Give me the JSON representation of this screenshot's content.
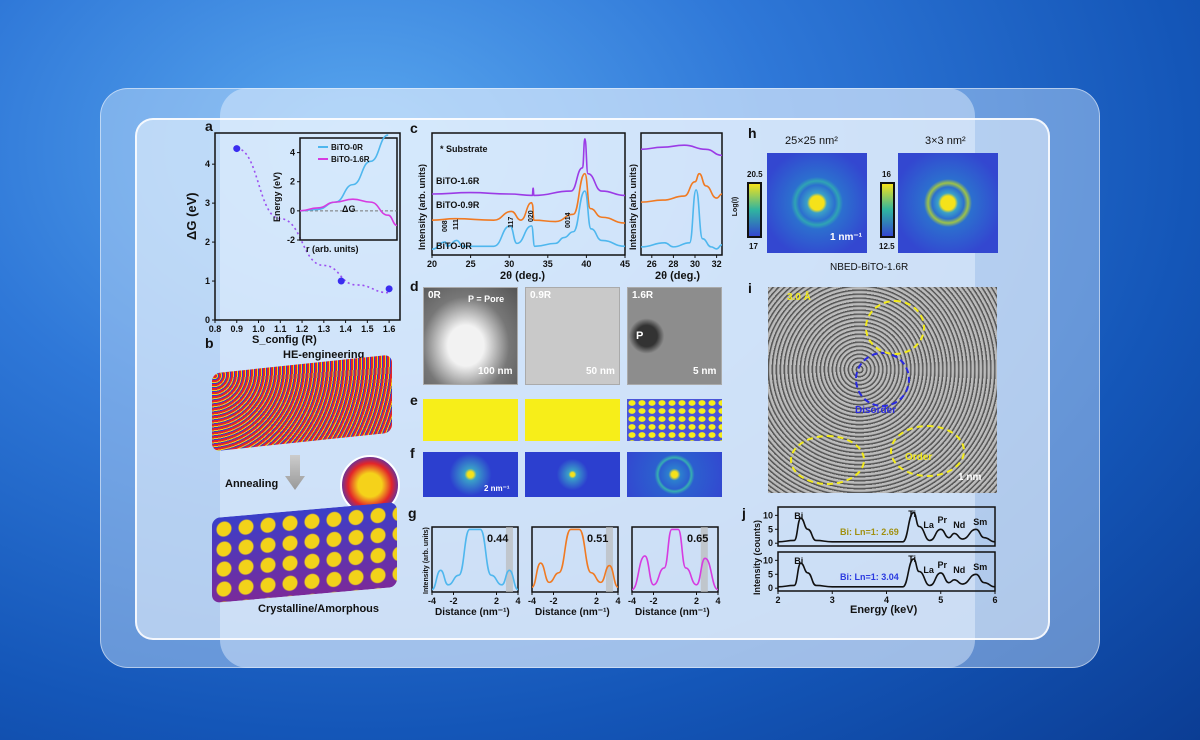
{
  "panels": {
    "a": "a",
    "b": "b",
    "c": "c",
    "d": "d",
    "e": "e",
    "f": "f",
    "g": "g",
    "h": "h",
    "i": "i",
    "j": "j"
  },
  "colors": {
    "blue_series": "#4fb7ee",
    "orange_series": "#f07a22",
    "magenta_series": "#d63be0",
    "purple_series": "#9b3be6",
    "points": "#3a2df0"
  },
  "b": {
    "top_label": "HE-engineering",
    "arrow_label": "Annealing",
    "bottom_label": "Crystalline/Amorphous"
  },
  "d": {
    "labels": [
      "0R",
      "0.9R",
      "1.6R"
    ],
    "pore_label": "P = Pore",
    "p_label": "P",
    "scalebars": [
      "100 nm",
      "50 nm",
      "5 nm"
    ]
  },
  "f": {
    "scalebar": "2 nm⁻¹"
  },
  "h": {
    "titles": [
      "25×25 nm²",
      "3×3 nm²"
    ],
    "colorbar_label": "Log(I)",
    "cbar1": [
      "20.5",
      "17"
    ],
    "cbar2": [
      "16",
      "12.5"
    ],
    "scalebar": "1 nm⁻¹",
    "caption": "NBED-BiTO-1.6R"
  },
  "i": {
    "spacing": "3.0 Å",
    "disorder": "Disorder",
    "order": "Order",
    "scalebar": "1 nm"
  },
  "chart_data": [
    {
      "panel": "a",
      "type": "scatter",
      "xlabel": "S_config (R)",
      "ylabel": "ΔG (eV)",
      "xlim": [
        0.8,
        1.65
      ],
      "ylim": [
        0,
        4.8
      ],
      "xticks": [
        "0.8",
        "0.9",
        "1.0",
        "1.1",
        "1.2",
        "1.3",
        "1.4",
        "1.5",
        "1.6"
      ],
      "yticks": [
        "0",
        "1",
        "2",
        "3",
        "4"
      ],
      "x": [
        0.9,
        1.38,
        1.6
      ],
      "y": [
        4.4,
        1.0,
        0.8
      ],
      "inset": {
        "type": "line",
        "xlabel": "r (arb. units)",
        "ylabel": "Energy (eV)",
        "yticks": [
          "-2",
          "0",
          "2",
          "4"
        ],
        "ylim": [
          -2,
          5
        ],
        "annotation": "ΔG",
        "series": [
          {
            "name": "BiTO-0R",
            "x": [
              0,
              0.2,
              0.4,
              0.6,
              0.8,
              1.0
            ],
            "y": [
              0,
              0.1,
              0.6,
              1.8,
              3.4,
              5.2
            ]
          },
          {
            "name": "BiTO-1.6R",
            "x": [
              0,
              0.2,
              0.4,
              0.6,
              0.8,
              1.0,
              1.1
            ],
            "y": [
              0,
              0.2,
              0.6,
              0.8,
              0.6,
              -0.3,
              -1.0
            ]
          }
        ]
      }
    },
    {
      "panel": "c",
      "type": "line",
      "xlabel": "2θ (deg.)",
      "ylabel": "Intensity (arb. units)",
      "xlim": [
        20,
        45
      ],
      "xticks": [
        "20",
        "25",
        "30",
        "35",
        "40",
        "45"
      ],
      "legend_note": "* Substrate",
      "peak_labels": [
        "008",
        "111",
        "117",
        "020",
        "0014"
      ],
      "series": [
        {
          "name": "BiTO-1.6R",
          "x": [
            20,
            25,
            30,
            33,
            33.1,
            33.2,
            38,
            39.5,
            39.8,
            40.2,
            42,
            45
          ],
          "y": [
            2.1,
            2.15,
            2.1,
            2.05,
            2.3,
            2.05,
            2.2,
            3.0,
            4.0,
            2.8,
            2.2,
            2.05
          ]
        },
        {
          "name": "BiTO-0.9R",
          "x": [
            20,
            23,
            28,
            30.3,
            31.5,
            32.9,
            33,
            33.2,
            36,
            38.3,
            39.8,
            40.5,
            42,
            45
          ],
          "y": [
            1.2,
            1.25,
            1.2,
            1.5,
            1.2,
            1.8,
            1.75,
            1.2,
            1.15,
            1.4,
            2.8,
            1.6,
            1.3,
            1.1
          ]
        },
        {
          "name": "BiTO-0R",
          "x": [
            20,
            21.7,
            22,
            23.2,
            24,
            28,
            30.1,
            31,
            32.9,
            33.3,
            36,
            37.1,
            38.3,
            39.8,
            40.6,
            42,
            45
          ],
          "y": [
            0.2,
            0.45,
            0.3,
            0.5,
            0.3,
            0.3,
            1.0,
            0.4,
            1.0,
            0.3,
            0.4,
            0.6,
            0.8,
            2.2,
            0.9,
            0.5,
            0.3
          ]
        }
      ]
    },
    {
      "panel": "c-zoom",
      "type": "line",
      "xlabel": "2θ (deg.)",
      "ylabel": "Intensity (arb. units)",
      "xlim": [
        25,
        32.5
      ],
      "xticks": [
        "26",
        "28",
        "30",
        "32"
      ],
      "series": [
        {
          "name": "BiTO-1.6R",
          "x": [
            25,
            27,
            29,
            31,
            32.5
          ],
          "y": [
            2.6,
            2.65,
            2.7,
            2.6,
            2.45
          ]
        },
        {
          "name": "BiTO-0.9R",
          "x": [
            25,
            27,
            29,
            30,
            30.4,
            31,
            32,
            32.5
          ],
          "y": [
            1.3,
            1.35,
            1.45,
            1.8,
            2.0,
            1.7,
            1.4,
            1.5
          ]
        },
        {
          "name": "BiTO-0R",
          "x": [
            25,
            27.2,
            28,
            29.5,
            30.1,
            30.7,
            31.5,
            32,
            32.5
          ],
          "y": [
            0.2,
            0.3,
            0.2,
            0.3,
            1.6,
            0.4,
            0.2,
            0.15,
            0.25
          ]
        }
      ]
    },
    {
      "panel": "g",
      "type": "line",
      "xlabel": "Distance (nm⁻¹)",
      "ylabel": "Intensity (arb. units)",
      "xlim": [
        -4,
        4
      ],
      "xticks": [
        "-4",
        "-2",
        "2",
        "4"
      ],
      "series": [
        {
          "label": "0.44",
          "x": [
            -4,
            -3.2,
            -2.5,
            -1.5,
            -0.5,
            0,
            0.5,
            1.5,
            2.5,
            3.2,
            4
          ],
          "y": [
            0.05,
            0.45,
            0.15,
            0.35,
            1.3,
            1.3,
            1.3,
            0.35,
            0.15,
            0.45,
            0.05
          ]
        },
        {
          "label": "0.51",
          "x": [
            -4,
            -3.2,
            -2.4,
            -1.5,
            -0.4,
            0,
            0.4,
            1.5,
            2.4,
            3.2,
            4
          ],
          "y": [
            0.1,
            0.6,
            0.2,
            0.4,
            1.3,
            1.3,
            1.3,
            0.4,
            0.2,
            0.55,
            0.1
          ]
        },
        {
          "label": "0.65",
          "x": [
            -4,
            -2.8,
            -2,
            -1,
            -0.3,
            0,
            0.3,
            1,
            2,
            2.8,
            4
          ],
          "y": [
            0.05,
            0.75,
            0.15,
            0.5,
            1.3,
            1.3,
            1.3,
            0.5,
            0.15,
            0.7,
            0.05
          ]
        }
      ]
    },
    {
      "panel": "j",
      "type": "line",
      "xlabel": "Energy (keV)",
      "ylabel": "Intensity (counts)",
      "xlim": [
        2,
        6
      ],
      "ylim": [
        -1,
        13
      ],
      "xticks": [
        "2",
        "3",
        "4",
        "5",
        "6"
      ],
      "yticks": [
        "0",
        "5",
        "10"
      ],
      "peak_labels": [
        "Bi",
        "Ti",
        "La",
        "Pr",
        "Nd",
        "Sm"
      ],
      "series": [
        {
          "annotation": "Bi: Ln=1: 2.69",
          "x": [
            2,
            2.3,
            2.42,
            2.55,
            2.7,
            3,
            4.3,
            4.5,
            4.6,
            4.8,
            5.0,
            5.15,
            5.25,
            5.4,
            5.65,
            5.8,
            6
          ],
          "y": [
            0.5,
            1,
            9,
            5,
            1,
            0.5,
            0.5,
            11,
            6,
            1,
            5,
            2,
            3.5,
            1.5,
            5,
            2,
            0.5
          ]
        },
        {
          "annotation": "Bi: Ln=1: 3.04",
          "x": [
            2,
            2.3,
            2.42,
            2.55,
            2.7,
            3,
            4.3,
            4.5,
            4.6,
            4.8,
            5.0,
            5.15,
            5.25,
            5.4,
            5.65,
            5.8,
            6
          ],
          "y": [
            0.5,
            1,
            9,
            5.5,
            1,
            0.5,
            0.5,
            10.5,
            6,
            1,
            5.5,
            2,
            3,
            1.5,
            5,
            2,
            0.5
          ]
        }
      ]
    }
  ]
}
